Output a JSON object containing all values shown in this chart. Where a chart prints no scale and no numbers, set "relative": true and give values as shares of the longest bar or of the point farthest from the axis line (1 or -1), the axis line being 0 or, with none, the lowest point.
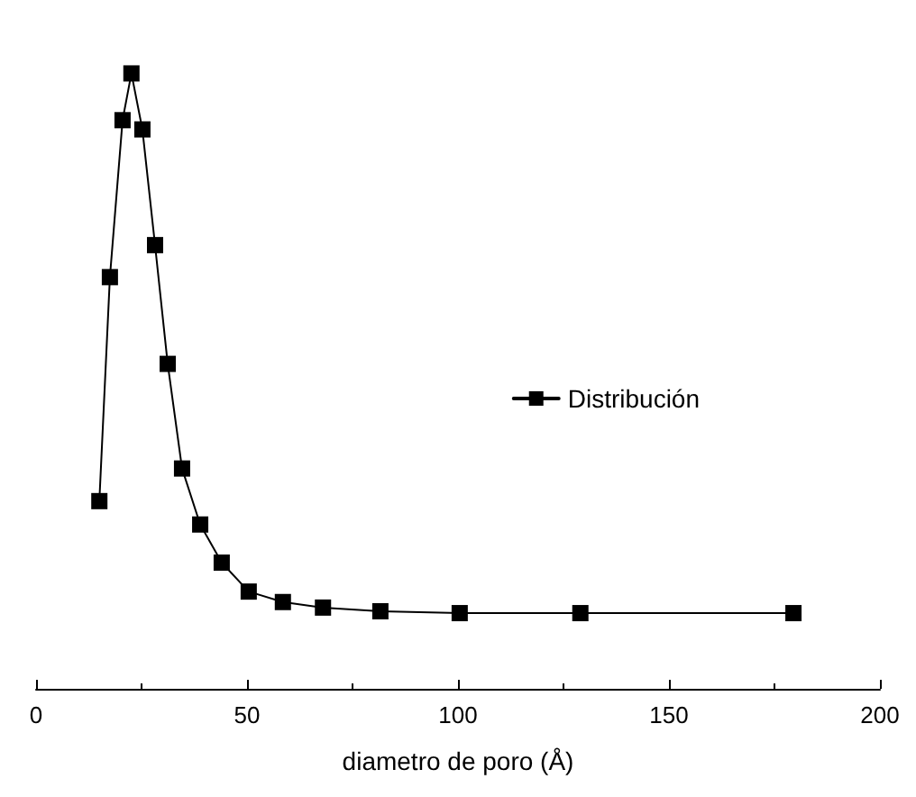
{
  "chart_data": {
    "type": "line",
    "xlabel": "diametro de poro (Å)",
    "relative": true,
    "xlim": [
      0,
      200
    ],
    "xticks": [
      0,
      50,
      100,
      150,
      200
    ],
    "series": [
      {
        "name": "Distribución",
        "color": "#000000",
        "x": [
          15,
          17.5,
          20.5,
          22.6,
          25.2,
          28.2,
          31.2,
          34.6,
          38.9,
          44,
          50.4,
          58.5,
          68,
          81.6,
          100.4,
          129,
          179.5
        ],
        "values": [
          0.305,
          0.669,
          0.924,
          1,
          0.909,
          0.721,
          0.528,
          0.358,
          0.267,
          0.205,
          0.158,
          0.141,
          0.132,
          0.126,
          0.123,
          0.123,
          0.123
        ]
      }
    ],
    "marker": "square",
    "line_style": "solid",
    "legend": "right",
    "grid": false
  }
}
